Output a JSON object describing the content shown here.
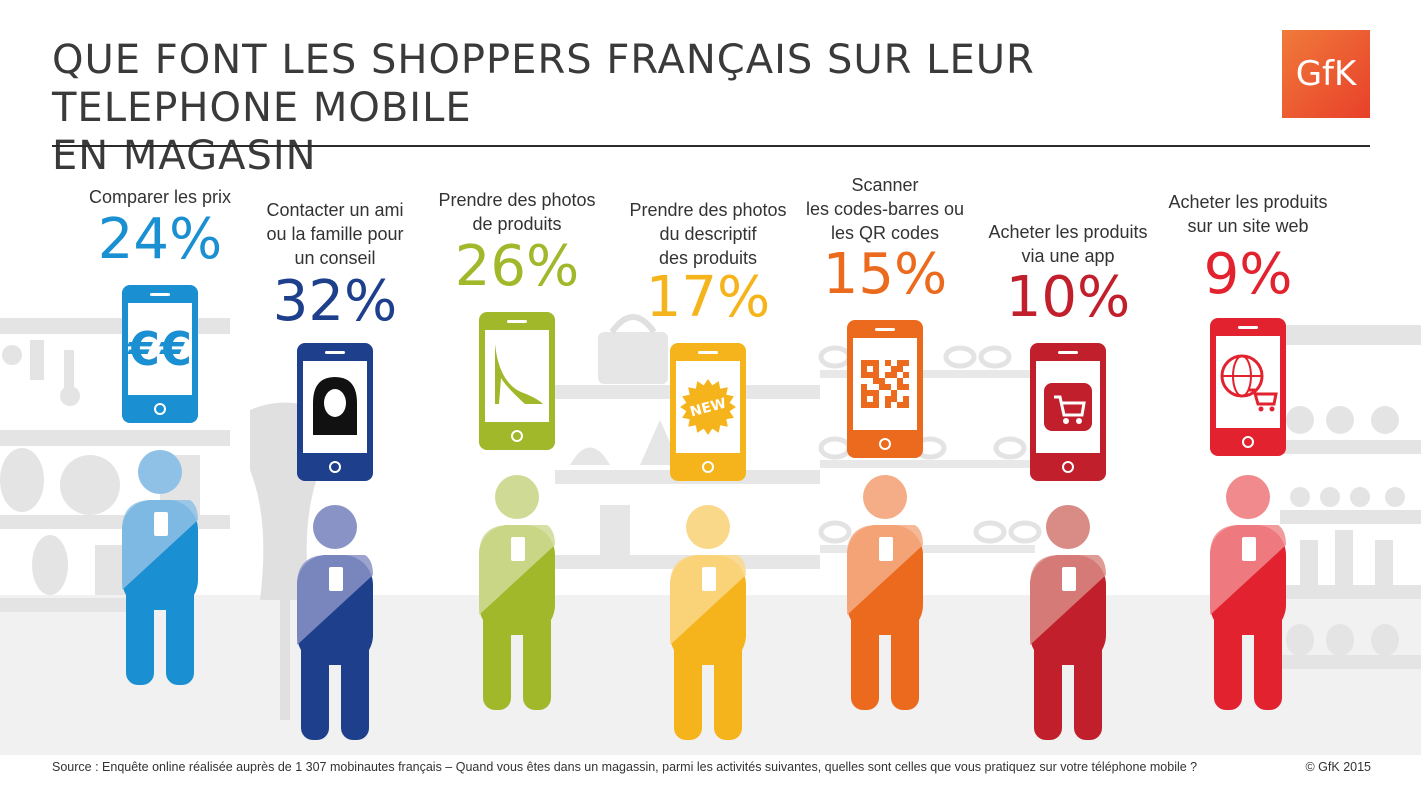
{
  "header": {
    "title_line1": "QUE FONT LES SHOPPERS FRANÇAIS SUR LEUR TELEPHONE MOBILE",
    "title_line2": "EN MAGASIN",
    "logo_text": "GfK",
    "logo_color": "#e9512d"
  },
  "chart_data": {
    "type": "bar",
    "unit": "%",
    "categories": [
      "Comparer les prix",
      "Contacter un ami ou la famille pour un conseil",
      "Prendre des photos de produits",
      "Prendre des photos du descriptif des produits",
      "Scanner les codes-barres ou les QR codes",
      "Acheter les produits via une app",
      "Acheter les produits sur un site web"
    ],
    "values": [
      24,
      32,
      26,
      17,
      15,
      10,
      9
    ],
    "value_labels": [
      "24%",
      "32%",
      "26%",
      "17%",
      "15%",
      "10%",
      "9%"
    ],
    "colors": [
      "#1a8fd1",
      "#1d3f8c",
      "#a0b82a",
      "#f5b41b",
      "#ec6a1e",
      "#c11f2b",
      "#e2232f"
    ]
  },
  "items": [
    {
      "label": "Comparer les prix",
      "value": "24%",
      "icon": "euro-icon",
      "color": "#1a8fd1",
      "light": "#8fc1e6"
    },
    {
      "label": "Contacter un ami\nou la famille pour\nun conseil",
      "value": "32%",
      "icon": "woman-portrait-icon",
      "color": "#1d3f8c",
      "light": "#8993c6"
    },
    {
      "label": "Prendre des photos\nde produits",
      "value": "26%",
      "icon": "high-heel-shoe-icon",
      "color": "#a0b82a",
      "light": "#cfdb95"
    },
    {
      "label": "Prendre des photos\ndu descriptif\ndes produits",
      "value": "17%",
      "icon": "new-badge-icon",
      "color": "#f5b41b",
      "light": "#fad88a"
    },
    {
      "label": "Scanner\nles codes-barres ou\nles QR codes",
      "value": "15%",
      "icon": "qr-code-icon",
      "color": "#ec6a1e",
      "light": "#f4ad86"
    },
    {
      "label": "Acheter les produits\nvia une app",
      "value": "10%",
      "icon": "shopping-cart-app-icon",
      "color": "#c11f2b",
      "light": "#d98b85"
    },
    {
      "label": "Acheter les produits\nsur un site web",
      "value": "9%",
      "icon": "globe-cart-icon",
      "color": "#e2232f",
      "light": "#f08a8d"
    }
  ],
  "footer": {
    "source": "Source : Enquête online réalisée auprès de 1 307 mobinautes français – Quand vous êtes dans un magassin, parmi les activités suivantes, quelles sont celles que vous pratiquez sur votre téléphone mobile ?",
    "copyright": "© GfK 2015"
  }
}
